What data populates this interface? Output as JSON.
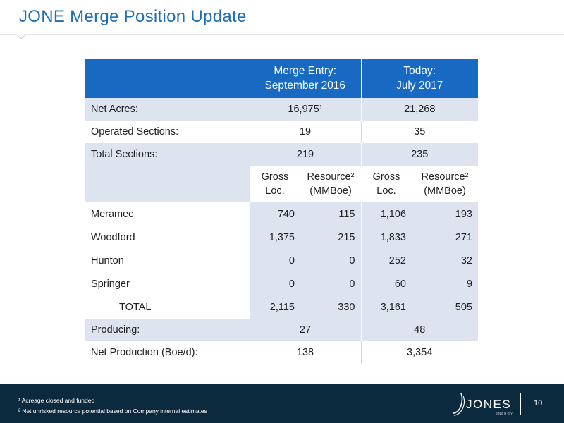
{
  "title": "JONE Merge Position Update",
  "table": {
    "header": {
      "col1_top": "Merge Entry:",
      "col1_bottom": "September 2016",
      "col2_top": "Today:",
      "col2_bottom": "July 2017"
    },
    "summary_rows": [
      {
        "label": "Net Acres:",
        "v1": "16,975¹",
        "v2": "21,268"
      },
      {
        "label": "Operated Sections:",
        "v1": "19",
        "v2": "35"
      },
      {
        "label": "Total Sections:",
        "v1": "219",
        "v2": "235"
      }
    ],
    "subheaders": {
      "gross_top": "Gross",
      "gross_bottom": "Loc.",
      "resource_top": "Resource²",
      "resource_bottom": "(MMBoe)"
    },
    "formation_rows": [
      {
        "label": "Meramec",
        "gross_2016": "740",
        "res_2016": "115",
        "gross_2017": "1,106",
        "res_2017": "193"
      },
      {
        "label": "Woodford",
        "gross_2016": "1,375",
        "res_2016": "215",
        "gross_2017": "1,833",
        "res_2017": "271"
      },
      {
        "label": "Hunton",
        "gross_2016": "0",
        "res_2016": "0",
        "gross_2017": "252",
        "res_2017": "32"
      },
      {
        "label": "Springer",
        "gross_2016": "0",
        "res_2016": "0",
        "gross_2017": "60",
        "res_2017": "9"
      },
      {
        "label": "TOTAL",
        "gross_2016": "2,115",
        "res_2016": "330",
        "gross_2017": "3,161",
        "res_2017": "505"
      }
    ],
    "bottom_rows": [
      {
        "label": "Producing:",
        "v1": "27",
        "v2": "48"
      },
      {
        "label": "Net Production (Boe/d):",
        "v1": "138",
        "v2": "3,354"
      }
    ]
  },
  "footer": {
    "footnote1": "¹ Acreage closed and funded",
    "footnote2": "² Net unrisked resource potential based on Company internal estimates",
    "logo_word": "JONES",
    "logo_sub": "ENERGY",
    "page_number": "10"
  },
  "colors": {
    "title": "#1f6fb2",
    "header_fill": "#1769c2",
    "shade_fill": "#dde3ef",
    "footer_fill": "#0b2a3d"
  }
}
